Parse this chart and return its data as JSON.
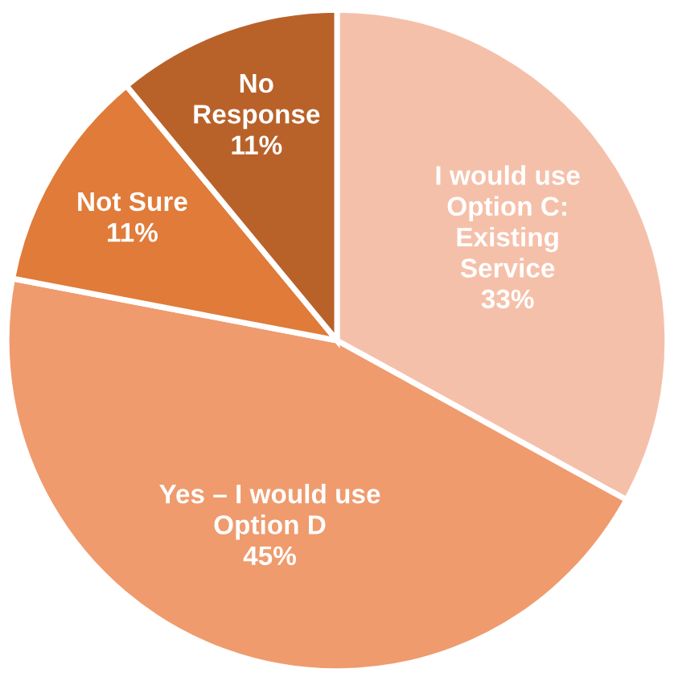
{
  "chart_data": {
    "type": "pie",
    "categories": [
      "I would use\nOption C:\nExisting\nService",
      "Yes – I would use\nOption D",
      "Not Sure",
      "No\nResponse"
    ],
    "values": [
      33,
      45,
      11,
      11
    ],
    "value_labels": [
      "33%",
      "45%",
      "11%",
      "11%"
    ],
    "colors": [
      "#f5c0aa",
      "#ef9b6e",
      "#e07b39",
      "#b8622a"
    ],
    "legend": false
  }
}
